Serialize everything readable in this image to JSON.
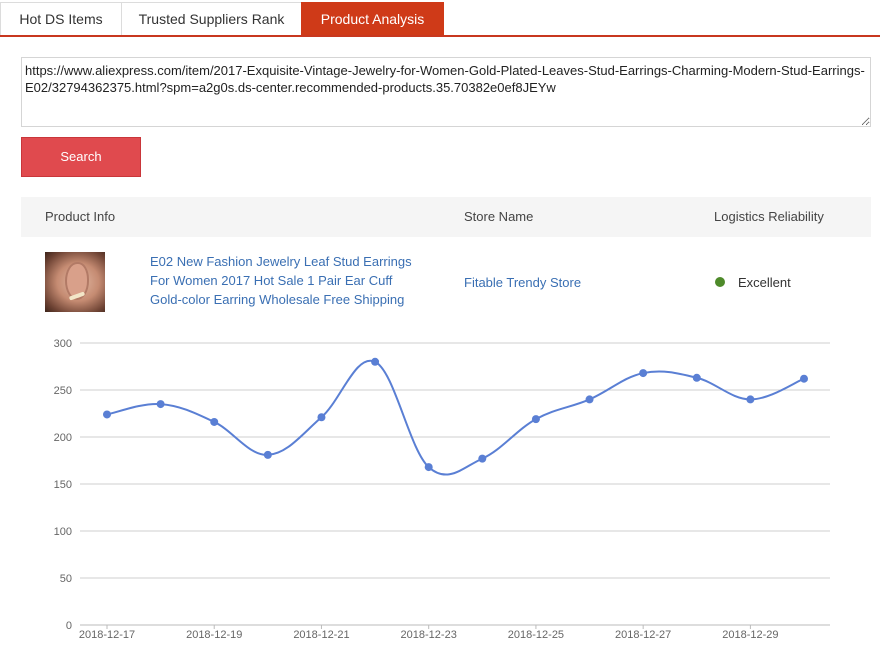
{
  "tabs": [
    {
      "label": "Hot DS Items"
    },
    {
      "label": "Trusted Suppliers Rank"
    },
    {
      "label": "Product Analysis"
    }
  ],
  "search": {
    "url_value": "https://www.aliexpress.com/item/2017-Exquisite-Vintage-Jewelry-for-Women-Gold-Plated-Leaves-Stud-Earrings-Charming-Modern-Stud-Earrings-E02/32794362375.html?spm=a2g0s.ds-center.recommended-products.35.70382e0ef8JEYw",
    "button_label": "Search"
  },
  "table": {
    "headers": {
      "product_info": "Product Info",
      "store_name": "Store Name",
      "logistics": "Logistics Reliability"
    },
    "row": {
      "product_title": "E02 New Fashion Jewelry Leaf Stud Earrings For Women 2017 Hot Sale 1 Pair Ear Cuff Gold-color Earring Wholesale Free Shipping",
      "store": "Fitable Trendy Store",
      "logistics_status": "Excellent",
      "status_color": "#4e8a2a"
    }
  },
  "chart_data": {
    "type": "line",
    "x": [
      "2018-12-17",
      "2018-12-18",
      "2018-12-19",
      "2018-12-20",
      "2018-12-21",
      "2018-12-22",
      "2018-12-23",
      "2018-12-24",
      "2018-12-25",
      "2018-12-26",
      "2018-12-27",
      "2018-12-28",
      "2018-12-29",
      "2018-12-30"
    ],
    "x_tick_labels": [
      "2018-12-17",
      "2018-12-19",
      "2018-12-21",
      "2018-12-23",
      "2018-12-25",
      "2018-12-27",
      "2018-12-29"
    ],
    "values": [
      224,
      235,
      216,
      181,
      221,
      280,
      168,
      177,
      219,
      240,
      268,
      263,
      240,
      262
    ],
    "ylim": [
      0,
      300
    ],
    "y_ticks": [
      0,
      50,
      100,
      150,
      200,
      250,
      300
    ],
    "line_color": "#5a7fd4",
    "grid": true
  }
}
